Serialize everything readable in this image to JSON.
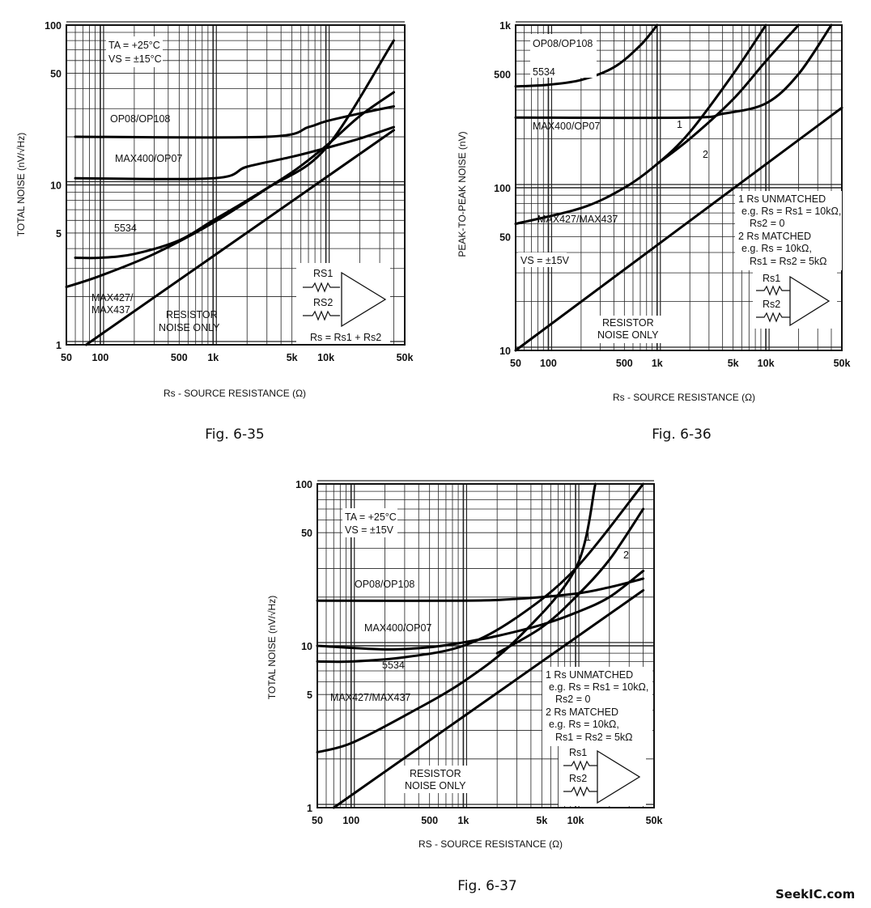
{
  "watermark": "SeekIC.com",
  "chart_data": [
    {
      "id": "fig635",
      "type": "line",
      "caption": "Fig. 6-35",
      "xlabel": "Rs - SOURCE RESISTANCE (Ω)",
      "ylabel": "TOTAL NOISE (nV/√Hz)",
      "xscale": "log",
      "yscale": "log",
      "xlim": [
        50,
        50000
      ],
      "ylim": [
        1,
        100
      ],
      "xticks": [
        {
          "v": 50,
          "t": "50"
        },
        {
          "v": 100,
          "t": "100"
        },
        {
          "v": 500,
          "t": "500"
        },
        {
          "v": 1000,
          "t": "1k"
        },
        {
          "v": 5000,
          "t": "5k"
        },
        {
          "v": 10000,
          "t": "10k"
        },
        {
          "v": 50000,
          "t": "50k"
        }
      ],
      "yticks": [
        {
          "v": 1,
          "t": "1"
        },
        {
          "v": 5,
          "t": "5"
        },
        {
          "v": 10,
          "t": "10"
        },
        {
          "v": 50,
          "t": "50"
        },
        {
          "v": 100,
          "t": "100"
        }
      ],
      "conditions": [
        "TA = +25°C",
        "VS = ±15°C"
      ],
      "series": [
        {
          "name": "OP08/OP108",
          "x": [
            60,
            3000,
            7000,
            10000,
            20000,
            40000
          ],
          "y": [
            20,
            20,
            23,
            25,
            28,
            31
          ]
        },
        {
          "name": "MAX400/OP07",
          "x": [
            60,
            1000,
            2000,
            5000,
            10000,
            20000,
            40000
          ],
          "y": [
            11,
            11,
            13,
            15,
            17,
            19.5,
            23
          ]
        },
        {
          "name": "5534",
          "x": [
            60,
            100,
            200,
            500,
            1000,
            2000,
            5000,
            10000,
            20000,
            40000
          ],
          "y": [
            3.5,
            3.5,
            3.7,
            4.5,
            6,
            8,
            12,
            17.5,
            27,
            38
          ]
        },
        {
          "name": "MAX427/MAX437",
          "x": [
            50,
            100,
            300,
            1000,
            3000,
            10000,
            40000
          ],
          "y": [
            2.3,
            2.7,
            3.7,
            5.8,
            9.5,
            17,
            80
          ]
        },
        {
          "name": "RESISTOR NOISE ONLY",
          "x": [
            75,
            40000
          ],
          "y": [
            1,
            22
          ]
        }
      ],
      "annotations": [
        "OP08/OP108",
        "MAX400/OP07",
        "5534",
        "MAX427/",
        "MAX437",
        "RESISTOR",
        "NOISE ONLY",
        "Rs = Rs1 + Rs2"
      ],
      "inset": {
        "r1": "RS1",
        "r2": "RS2"
      }
    },
    {
      "id": "fig636",
      "type": "line",
      "caption": "Fig. 6-36",
      "xlabel": "Rs - SOURCE RESISTANCE (Ω)",
      "ylabel": "PEAK-TO-PEAK NOISE (nV)",
      "xscale": "log",
      "yscale": "log",
      "xlim": [
        50,
        50000
      ],
      "ylim": [
        10,
        1000
      ],
      "xticks": [
        {
          "v": 50,
          "t": "50"
        },
        {
          "v": 100,
          "t": "100"
        },
        {
          "v": 500,
          "t": "500"
        },
        {
          "v": 1000,
          "t": "1k"
        },
        {
          "v": 5000,
          "t": "5k"
        },
        {
          "v": 10000,
          "t": "10k"
        },
        {
          "v": 50000,
          "t": "50k"
        }
      ],
      "yticks": [
        {
          "v": 10,
          "t": "10"
        },
        {
          "v": 50,
          "t": "50"
        },
        {
          "v": 100,
          "t": "100"
        },
        {
          "v": 500,
          "t": "500"
        },
        {
          "v": 1000,
          "t": "1k"
        }
      ],
      "conditions": [
        "VS = ±15V"
      ],
      "series": [
        {
          "name": "OP08/OP108",
          "x": [
            50,
            100,
            200,
            400,
            700,
            1000
          ],
          "y": [
            420,
            430,
            460,
            550,
            750,
            1000
          ]
        },
        {
          "name": "MAX400/OP07",
          "x": [
            50,
            2000,
            4000,
            10000,
            20000,
            40000
          ],
          "y": [
            270,
            270,
            285,
            330,
            500,
            1000
          ]
        },
        {
          "name": "MAX427/MAX437 (1)",
          "x": [
            50,
            200,
            500,
            1000,
            2000,
            5000,
            10000
          ],
          "y": [
            60,
            75,
            100,
            140,
            220,
            500,
            1000
          ]
        },
        {
          "name": "MAX427/MAX437 (2)",
          "x": [
            1000,
            2000,
            5000,
            10000,
            20000
          ],
          "y": [
            140,
            200,
            350,
            600,
            1000
          ]
        },
        {
          "name": "RESISTOR NOISE ONLY",
          "x": [
            50,
            50000
          ],
          "y": [
            10,
            310
          ]
        }
      ],
      "annotations": [
        "OP08/OP108",
        "5534",
        "MAX400/OP07",
        "MAX427/MAX437",
        "1",
        "2",
        "RESISTOR",
        "NOISE ONLY"
      ],
      "notes": [
        "1 Rs UNMATCHED",
        "e.g. Rs = Rs1 = 10kΩ,",
        "Rs2 = 0",
        "2 Rs MATCHED",
        "e.g. Rs = 10kΩ,",
        "Rs1 = Rs2 = 5kΩ"
      ],
      "inset": {
        "r1": "Rs1",
        "r2": "Rs2"
      }
    },
    {
      "id": "fig637",
      "type": "line",
      "caption": "Fig. 6-37",
      "xlabel": "RS - SOURCE RESISTANCE (Ω)",
      "ylabel": "TOTAL NOISE (nV/√Hz)",
      "xscale": "log",
      "yscale": "log",
      "xlim": [
        50,
        50000
      ],
      "ylim": [
        1,
        100
      ],
      "xticks": [
        {
          "v": 50,
          "t": "50"
        },
        {
          "v": 100,
          "t": "100"
        },
        {
          "v": 500,
          "t": "500"
        },
        {
          "v": 1000,
          "t": "1k"
        },
        {
          "v": 5000,
          "t": "5k"
        },
        {
          "v": 10000,
          "t": "10k"
        },
        {
          "v": 50000,
          "t": "50k"
        }
      ],
      "yticks": [
        {
          "v": 1,
          "t": "1"
        },
        {
          "v": 5,
          "t": "5"
        },
        {
          "v": 10,
          "t": "10"
        },
        {
          "v": 50,
          "t": "50"
        },
        {
          "v": 100,
          "t": "100"
        }
      ],
      "conditions": [
        "TA = +25°C",
        "VS = ±15V"
      ],
      "series": [
        {
          "name": "OP08/OP108",
          "x": [
            50,
            1000,
            3000,
            10000,
            20000,
            40000
          ],
          "y": [
            19,
            19,
            19.5,
            21,
            23,
            26
          ]
        },
        {
          "name": "MAX400/OP07",
          "x": [
            50,
            200,
            500,
            1000,
            2000,
            5000,
            10000,
            20000,
            40000
          ],
          "y": [
            10,
            9.5,
            9.8,
            10.5,
            11.5,
            13.5,
            16,
            20,
            29
          ]
        },
        {
          "name": "5534",
          "x": [
            50,
            100,
            300,
            1000,
            3000,
            10000,
            40000
          ],
          "y": [
            8,
            8,
            8.5,
            10,
            15,
            30,
            100
          ]
        },
        {
          "name": "MAX427/MAX437 (1)",
          "x": [
            50,
            100,
            300,
            1000,
            3000,
            10000,
            15000
          ],
          "y": [
            2.2,
            2.5,
            3.7,
            6,
            11,
            30,
            100
          ]
        },
        {
          "name": "MAX427/MAX437 (2)",
          "x": [
            2000,
            5000,
            10000,
            20000,
            40000
          ],
          "y": [
            9,
            13,
            20,
            34,
            70
          ]
        },
        {
          "name": "RESISTOR NOISE ONLY",
          "x": [
            70,
            40000
          ],
          "y": [
            1,
            22
          ]
        }
      ],
      "annotations": [
        "OP08/OP108",
        "MAX400/OP07",
        "5534",
        "MAX427/MAX437",
        "1",
        "2",
        "RESISTOR",
        "NOISE ONLY"
      ],
      "notes": [
        "1 Rs UNMATCHED",
        "e.g. Rs = Rs1 = 10kΩ,",
        "Rs2 = 0",
        "2 Rs MATCHED",
        "e.g. Rs = 10kΩ,",
        "Rs1 = Rs2 = 5kΩ"
      ],
      "inset": {
        "r1": "Rs1",
        "r2": "Rs2"
      }
    }
  ]
}
